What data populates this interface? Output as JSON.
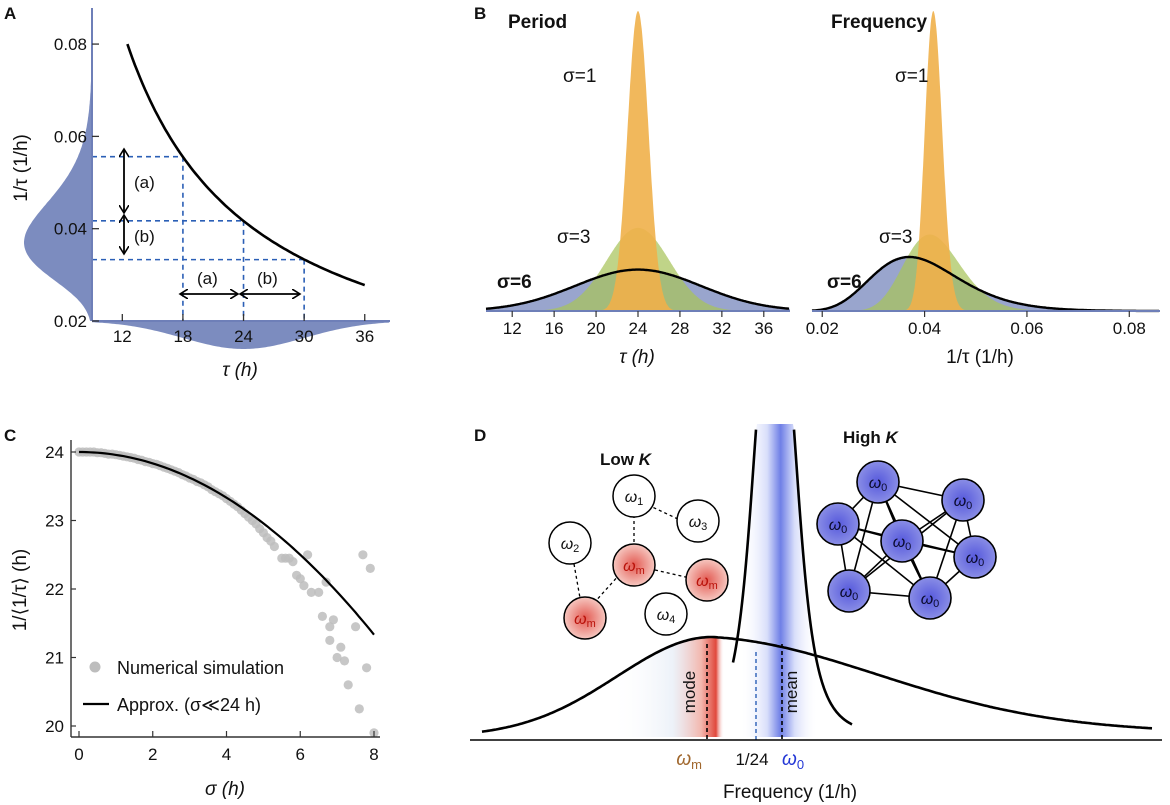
{
  "colors": {
    "blue": "#6e7fb8",
    "blue_light": "#b9c2e2",
    "orange": "#f0b04a",
    "green": "#a7c35a",
    "dash": "#2b5fb6",
    "red": "#d9534a",
    "node_blue": "#6c70d9",
    "curve": "#000000",
    "gray_point": "#bdbdbd"
  },
  "panel_labels": {
    "a": "A",
    "b": "B",
    "c": "C",
    "d": "D"
  },
  "chart_data": [
    {
      "id": "A",
      "type": "line",
      "title": "",
      "xlabel": "τ (h)",
      "ylabel": "1/τ (1/h)",
      "xlim": [
        9,
        38.5
      ],
      "ylim": [
        0.02,
        0.085
      ],
      "xticks": [
        "12",
        "18",
        "24",
        "30",
        "36"
      ],
      "yticks": [
        "0.02",
        "0.04",
        "0.06",
        "0.08"
      ],
      "curve": {
        "formula": "y = 1/x",
        "x_from": 12.5,
        "x_to": 36
      },
      "guides_x": [
        18,
        24,
        30
      ],
      "guides_y": [
        0.0556,
        0.0417,
        0.0333
      ],
      "annotations": [
        "(a)",
        "(b)",
        "(a)",
        "(b)"
      ],
      "x_histogram": {
        "mean": 24,
        "sd": 6
      },
      "y_histogram": {
        "mode": 0.037,
        "sd": 0.0085
      }
    },
    {
      "id": "B-period",
      "type": "histogram",
      "title": "Period",
      "xlabel": "τ (h)",
      "xlim": [
        9.5,
        38.5
      ],
      "xticks": [
        "12",
        "16",
        "20",
        "24",
        "28",
        "32",
        "36"
      ],
      "series": [
        {
          "name": "σ=1",
          "mean": 24,
          "sd": 1,
          "color": "orange"
        },
        {
          "name": "σ=3",
          "mean": 24,
          "sd": 3,
          "color": "green"
        },
        {
          "name": "σ=6",
          "mean": 24,
          "sd": 6,
          "color": "blue"
        }
      ]
    },
    {
      "id": "B-frequency",
      "type": "histogram",
      "title": "Frequency",
      "xlabel": "1/τ (1/h)",
      "xlim": [
        0.018,
        0.086
      ],
      "xticks": [
        "0.02",
        "0.04",
        "0.06",
        "0.08"
      ],
      "series": [
        {
          "name": "σ=1",
          "mode": 0.0417,
          "sd": 0.0017,
          "color": "orange"
        },
        {
          "name": "σ=3",
          "mode": 0.041,
          "sd": 0.0055,
          "color": "green"
        },
        {
          "name": "σ=6",
          "mode": 0.037,
          "sd": 0.0085,
          "color": "blue"
        }
      ]
    },
    {
      "id": "C",
      "type": "scatter",
      "title": "",
      "xlabel": "σ (h)",
      "ylabel": "1/⟨1/τ⟩ (h)",
      "xlim": [
        -0.15,
        8.2
      ],
      "ylim": [
        19.85,
        24.35
      ],
      "xticks": [
        "0",
        "2",
        "4",
        "6",
        "8"
      ],
      "yticks": [
        "20",
        "21",
        "22",
        "23",
        "24"
      ],
      "legend": [
        "Numerical simulation",
        "Approx. (σ≪24 h)"
      ],
      "approx_curve": {
        "formula": "y = 24 - σ²/24",
        "x_from": 0,
        "x_to": 8
      },
      "points": [
        [
          0.0,
          24.0
        ],
        [
          0.1,
          24.0
        ],
        [
          0.2,
          24.0
        ],
        [
          0.3,
          24.0
        ],
        [
          0.4,
          24.0
        ],
        [
          0.5,
          23.99
        ],
        [
          0.6,
          23.99
        ],
        [
          0.7,
          23.98
        ],
        [
          0.8,
          23.97
        ],
        [
          0.9,
          23.97
        ],
        [
          1.0,
          23.96
        ],
        [
          1.1,
          23.95
        ],
        [
          1.2,
          23.94
        ],
        [
          1.3,
          23.93
        ],
        [
          1.4,
          23.92
        ],
        [
          1.5,
          23.91
        ],
        [
          1.6,
          23.89
        ],
        [
          1.7,
          23.88
        ],
        [
          1.8,
          23.86
        ],
        [
          1.9,
          23.85
        ],
        [
          2.0,
          23.83
        ],
        [
          2.1,
          23.82
        ],
        [
          2.2,
          23.8
        ],
        [
          2.3,
          23.78
        ],
        [
          2.4,
          23.76
        ],
        [
          2.5,
          23.74
        ],
        [
          2.6,
          23.72
        ],
        [
          2.7,
          23.7
        ],
        [
          2.8,
          23.67
        ],
        [
          2.9,
          23.65
        ],
        [
          3.0,
          23.62
        ],
        [
          3.1,
          23.6
        ],
        [
          3.2,
          23.57
        ],
        [
          3.3,
          23.55
        ],
        [
          3.4,
          23.52
        ],
        [
          3.5,
          23.49
        ],
        [
          3.6,
          23.45
        ],
        [
          3.7,
          23.42
        ],
        [
          3.8,
          23.39
        ],
        [
          3.9,
          23.36
        ],
        [
          4.0,
          23.32
        ],
        [
          4.1,
          23.28
        ],
        [
          4.2,
          23.24
        ],
        [
          4.3,
          23.2
        ],
        [
          4.4,
          23.15
        ],
        [
          4.5,
          23.1
        ],
        [
          4.6,
          23.05
        ],
        [
          4.7,
          23.0
        ],
        [
          4.8,
          22.95
        ],
        [
          4.9,
          22.88
        ],
        [
          5.0,
          22.82
        ],
        [
          5.1,
          22.75
        ],
        [
          5.2,
          22.7
        ],
        [
          5.3,
          22.62
        ],
        [
          5.5,
          22.45
        ],
        [
          5.6,
          22.45
        ],
        [
          5.7,
          22.45
        ],
        [
          5.8,
          22.4
        ],
        [
          5.9,
          22.2
        ],
        [
          6.0,
          22.15
        ],
        [
          6.1,
          22.05
        ],
        [
          6.2,
          22.5
        ],
        [
          6.3,
          21.95
        ],
        [
          6.5,
          21.95
        ],
        [
          6.6,
          21.6
        ],
        [
          6.7,
          22.1
        ],
        [
          6.8,
          21.45
        ],
        [
          6.8,
          21.25
        ],
        [
          6.9,
          21.55
        ],
        [
          7.0,
          21.0
        ],
        [
          7.1,
          21.15
        ],
        [
          7.2,
          20.95
        ],
        [
          7.3,
          20.6
        ],
        [
          7.5,
          21.45
        ],
        [
          7.6,
          20.25
        ],
        [
          7.7,
          22.5
        ],
        [
          7.8,
          20.85
        ],
        [
          7.9,
          22.3
        ],
        [
          8.0,
          19.9
        ]
      ]
    },
    {
      "id": "D",
      "type": "line",
      "title": "",
      "xlabel": "Frequency (1/h)",
      "xticks": [
        "ωm",
        "1/24",
        "ω0"
      ],
      "curves": [
        "broad distribution (low K)",
        "narrow peak (high K)"
      ],
      "markers": [
        "mode",
        "mean"
      ],
      "low_k": {
        "label_main": "Low ",
        "label_k": "K"
      },
      "high_k": {
        "label_main": "High ",
        "label_k": "K"
      }
    }
  ],
  "a": {
    "xlabel": "τ (h)",
    "ylabel": "1/τ (1/h)",
    "xticks": [
      "12",
      "18",
      "24",
      "30",
      "36"
    ],
    "yticks": [
      "0.02",
      "0.04",
      "0.06",
      "0.08"
    ],
    "ann_a1": "(a)",
    "ann_b1": "(b)",
    "ann_a2": "(a)",
    "ann_b2": "(b)"
  },
  "b": {
    "period_title": "Period",
    "freq_title": "Frequency",
    "sigma1": "σ=1",
    "sigma3": "σ=3",
    "sigma6": "σ=6",
    "period_xlabel": "τ (h)",
    "freq_xlabel": "1/τ (1/h)",
    "period_xticks": [
      "12",
      "16",
      "20",
      "24",
      "28",
      "32",
      "36"
    ],
    "freq_xticks": [
      "0.02",
      "0.04",
      "0.06",
      "0.08"
    ]
  },
  "c": {
    "xlabel": "σ (h)",
    "ylabel": "1/⟨1/τ⟩ (h)",
    "xticks": [
      "0",
      "2",
      "4",
      "6",
      "8"
    ],
    "yticks": [
      "20",
      "21",
      "22",
      "23",
      "24"
    ],
    "legend_sim": "Numerical simulation",
    "legend_approx": "Approx. (σ≪24 h)"
  },
  "d": {
    "low_k_main": "Low ",
    "low_k_k": "K",
    "high_k_main": "High ",
    "high_k_k": "K",
    "mode": "mode",
    "mean": "mean",
    "tick_wm": "ω",
    "tick_wm_sub": "m",
    "tick_24": "1/24",
    "tick_w0": "ω",
    "tick_w0_sub": "0",
    "xlabel": "Frequency (1/h)",
    "node_w1": "ω",
    "node_w1_sub": "1",
    "node_w2": "ω",
    "node_w2_sub": "2",
    "node_w3": "ω",
    "node_w3_sub": "3",
    "node_w4": "ω",
    "node_w4_sub": "4",
    "node_wm": "ω",
    "node_wm_sub": "m",
    "node_w0": "ω",
    "node_w0_sub": "0"
  }
}
